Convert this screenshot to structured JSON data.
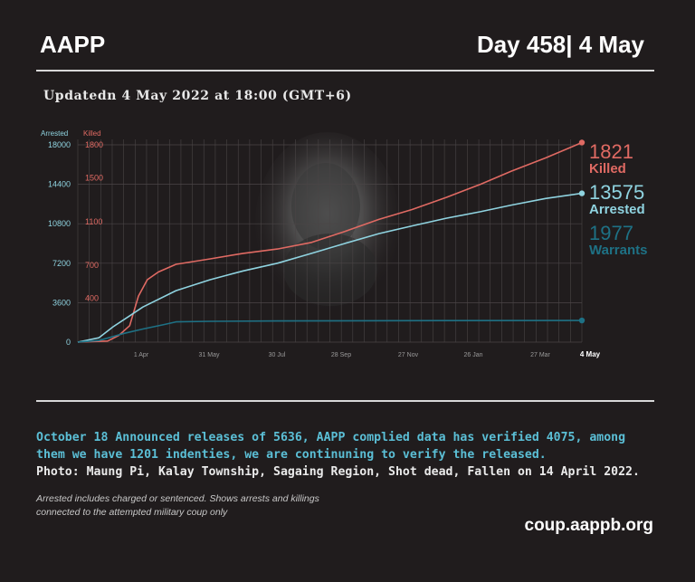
{
  "header": {
    "brand": "AAPP",
    "day": "Day 458| 4 May"
  },
  "updated": "Updatedn 4 May 2022 at 18:00 (GMT+6)",
  "chart_data": {
    "type": "line",
    "left_axis": {
      "title": "Arrested",
      "ticks": [
        0,
        3600,
        7200,
        10800,
        14400,
        18000
      ],
      "range": [
        0,
        18000
      ]
    },
    "right_axis": {
      "title": "Killed",
      "ticks": [
        0,
        400,
        700,
        1100,
        1500,
        1800
      ],
      "range": [
        0,
        1800
      ]
    },
    "x_ticks": [
      "1 Apr",
      "31 May",
      "30 Jul",
      "28 Sep",
      "27 Nov",
      "26 Jan",
      "27 Mar",
      "4 May"
    ],
    "x_range": [
      "2021-02-01",
      "2022-05-04"
    ],
    "grid": true,
    "series": [
      {
        "name": "Killed",
        "axis": "right",
        "color": "#e06a63",
        "final_value": "1821",
        "x": [
          "2021-02-01",
          "2021-02-28",
          "2021-03-10",
          "2021-03-20",
          "2021-03-28",
          "2021-04-05",
          "2021-04-15",
          "2021-05-01",
          "2021-06-01",
          "2021-07-01",
          "2021-08-01",
          "2021-09-01",
          "2021-10-01",
          "2021-11-01",
          "2021-12-01",
          "2022-01-01",
          "2022-02-01",
          "2022-03-01",
          "2022-04-01",
          "2022-05-04"
        ],
        "y": [
          0,
          10,
          60,
          150,
          420,
          570,
          640,
          710,
          760,
          810,
          850,
          910,
          1010,
          1120,
          1210,
          1320,
          1440,
          1560,
          1680,
          1821
        ]
      },
      {
        "name": "Arrested",
        "axis": "left",
        "color": "#8fd3e0",
        "final_value": "13575",
        "x": [
          "2021-02-01",
          "2021-02-20",
          "2021-03-05",
          "2021-03-20",
          "2021-04-01",
          "2021-05-01",
          "2021-06-01",
          "2021-07-01",
          "2021-08-01",
          "2021-09-01",
          "2021-10-01",
          "2021-11-01",
          "2021-12-01",
          "2022-01-01",
          "2022-02-01",
          "2022-03-01",
          "2022-04-01",
          "2022-05-04"
        ],
        "y": [
          0,
          400,
          1400,
          2400,
          3200,
          4700,
          5700,
          6500,
          7200,
          8100,
          9000,
          9900,
          10600,
          11300,
          11900,
          12500,
          13100,
          13575
        ]
      },
      {
        "name": "Warrants",
        "axis": "left",
        "color": "#1e7185",
        "final_value": "1977",
        "x": [
          "2021-02-01",
          "2021-02-20",
          "2021-03-01",
          "2021-03-15",
          "2021-04-01",
          "2021-04-20",
          "2021-05-01",
          "2021-06-01",
          "2021-08-01",
          "2021-10-01",
          "2022-01-01",
          "2022-05-04"
        ],
        "y": [
          0,
          150,
          400,
          800,
          1200,
          1600,
          1850,
          1900,
          1930,
          1950,
          1965,
          1977
        ]
      }
    ]
  },
  "notes": {
    "blue": "October 18 Announced releases of 5636, AAPP complied data has verified 4075, among them we have 1201 indenties, we are continuning to verify the released.",
    "photo": "Photo: Maung Pi, Kalay Township, Sagaing Region, Shot dead, Fallen on 14 April 2022.",
    "small1": "Arrested includes charged or sentenced. Shows arrests and killings",
    "small2": "connected to the attempted military coup only"
  },
  "site": "coup.aappb.org"
}
